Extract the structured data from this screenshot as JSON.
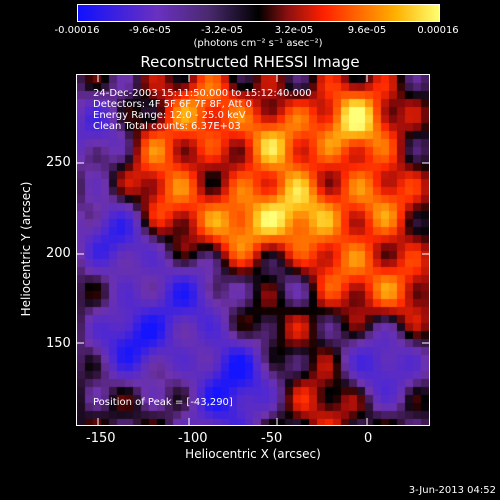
{
  "colorbar": {
    "ticks": [
      "-0.00016",
      "-9.6e-05",
      "-3.2e-05",
      "3.2e-05",
      "9.6e-05",
      "0.00016"
    ],
    "units": "(photons cm⁻² s⁻¹ asec⁻²)"
  },
  "title": "Reconstructed RHESSI Image",
  "info": {
    "line1": "24-Dec-2003 15:11:50.000 to 15:12:40.000",
    "line2": "Detectors: 4F 5F 6F 7F 8F, Att 0",
    "line3": "Energy Range: 12.0 - 25.0 keV",
    "line4": "Clean     Total counts: 6.37E+03",
    "peak": "Position of Peak = [-43,290]"
  },
  "axes": {
    "xlabel": "Heliocentric X (arcsec)",
    "ylabel": "Heliocentric Y (arcsec)",
    "xticks": [
      "-150",
      "-100",
      "-50",
      "0"
    ],
    "yticks": [
      "250",
      "200",
      "150"
    ]
  },
  "timestamp": "3-Jun-2013 04:52"
}
